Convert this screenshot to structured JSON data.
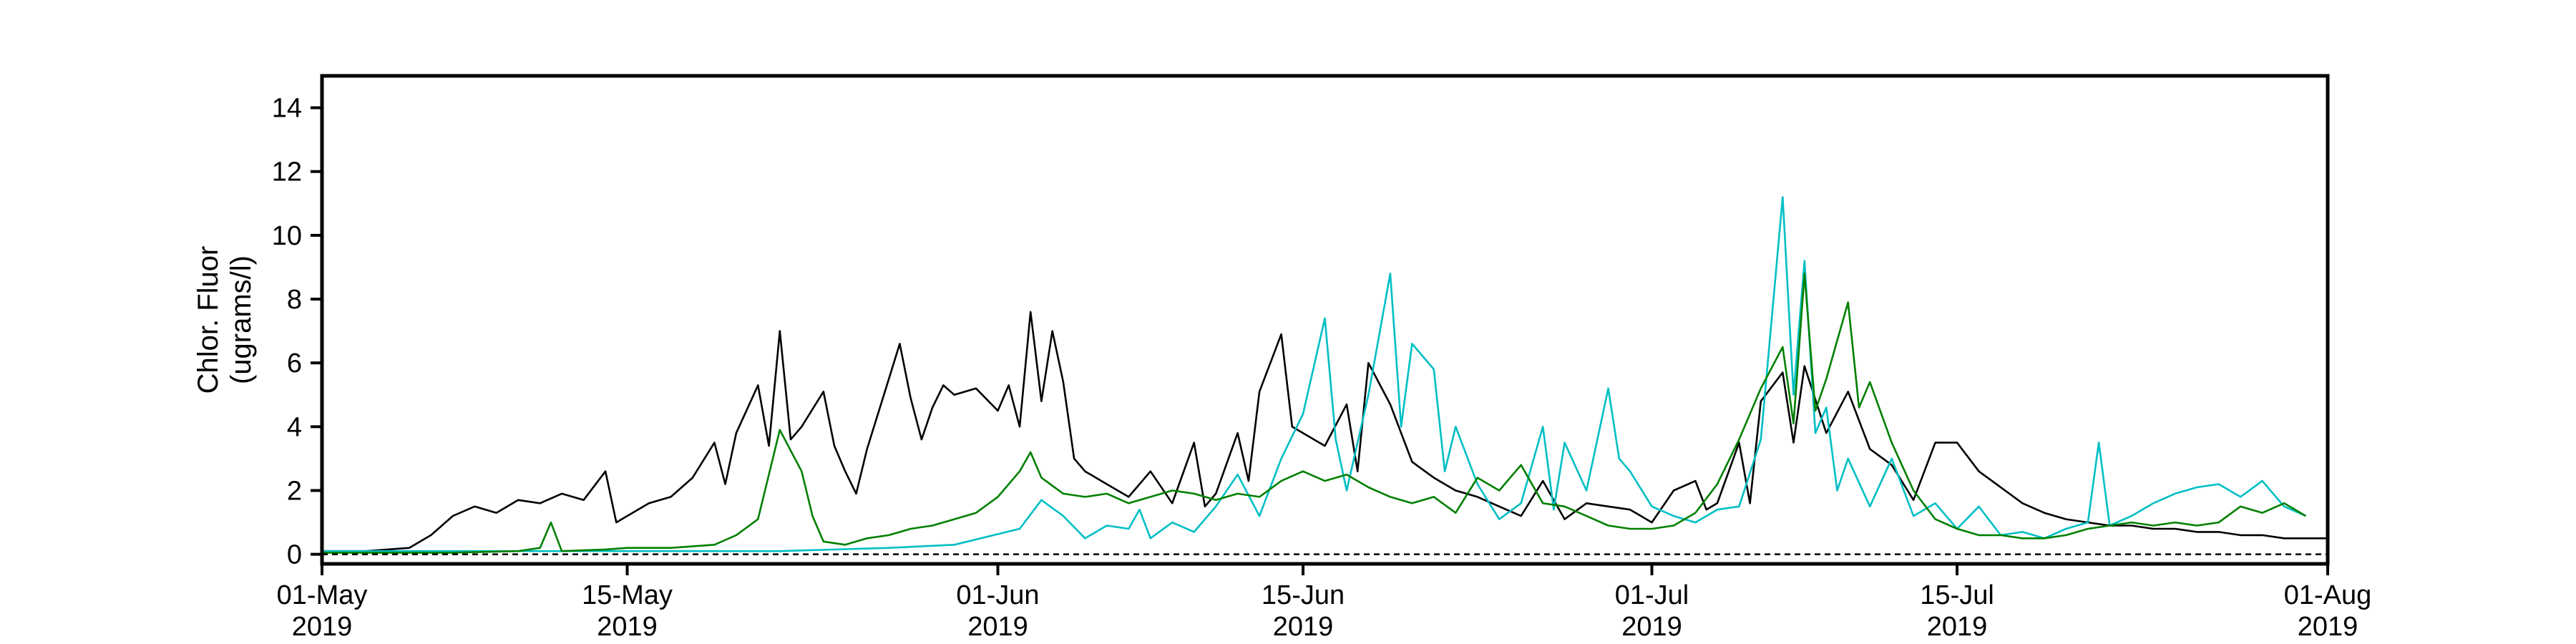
{
  "chart_data": {
    "type": "line",
    "title": "",
    "xlabel": "",
    "ylabel_lines": [
      "Chlor. Fluor",
      "(ugrams/l)"
    ],
    "x_range": [
      "2019-05-01",
      "2019-08-01"
    ],
    "ylim": [
      -0.3,
      15
    ],
    "y_ticks": [
      0,
      2,
      4,
      6,
      8,
      10,
      12,
      14
    ],
    "x_ticks": [
      {
        "date": "2019-05-01",
        "label": "01-May",
        "year": "2019"
      },
      {
        "date": "2019-05-15",
        "label": "15-May",
        "year": "2019"
      },
      {
        "date": "2019-06-01",
        "label": "01-Jun",
        "year": "2019"
      },
      {
        "date": "2019-06-15",
        "label": "15-Jun",
        "year": "2019"
      },
      {
        "date": "2019-07-01",
        "label": "01-Jul",
        "year": "2019"
      },
      {
        "date": "2019-07-15",
        "label": "15-Jul",
        "year": "2019"
      },
      {
        "date": "2019-08-01",
        "label": "01-Aug",
        "year": "2019"
      }
    ],
    "grid": false,
    "reference_line": {
      "y": 0,
      "style": "dashed",
      "color": "#000000"
    },
    "series": [
      {
        "color": "#000000",
        "points": [
          [
            "2019-05-01",
            0.1
          ],
          [
            "2019-05-03",
            0.1
          ],
          [
            "2019-05-05",
            0.2
          ],
          [
            "2019-05-06",
            0.6
          ],
          [
            "2019-05-07",
            1.2
          ],
          [
            "2019-05-08",
            1.5
          ],
          [
            "2019-05-09",
            1.3
          ],
          [
            "2019-05-10",
            1.7
          ],
          [
            "2019-05-11",
            1.6
          ],
          [
            "2019-05-12",
            1.9
          ],
          [
            "2019-05-13",
            1.7
          ],
          [
            "2019-05-14",
            2.6
          ],
          [
            "2019-05-14T12",
            1.0
          ],
          [
            "2019-05-15",
            1.2
          ],
          [
            "2019-05-16",
            1.6
          ],
          [
            "2019-05-17",
            1.8
          ],
          [
            "2019-05-18",
            2.4
          ],
          [
            "2019-05-19",
            3.5
          ],
          [
            "2019-05-19T12",
            2.2
          ],
          [
            "2019-05-20",
            3.8
          ],
          [
            "2019-05-21",
            5.3
          ],
          [
            "2019-05-21T12",
            3.4
          ],
          [
            "2019-05-22",
            7.0
          ],
          [
            "2019-05-22T12",
            3.6
          ],
          [
            "2019-05-23",
            4.0
          ],
          [
            "2019-05-24",
            5.1
          ],
          [
            "2019-05-24T12",
            3.4
          ],
          [
            "2019-05-25",
            2.6
          ],
          [
            "2019-05-25T12",
            1.9
          ],
          [
            "2019-05-26",
            3.3
          ],
          [
            "2019-05-27",
            5.5
          ],
          [
            "2019-05-27T12",
            6.6
          ],
          [
            "2019-05-28",
            4.9
          ],
          [
            "2019-05-28T12",
            3.6
          ],
          [
            "2019-05-29",
            4.6
          ],
          [
            "2019-05-29T12",
            5.3
          ],
          [
            "2019-05-30",
            5.0
          ],
          [
            "2019-05-31",
            5.2
          ],
          [
            "2019-06-01",
            4.5
          ],
          [
            "2019-06-01T12",
            5.3
          ],
          [
            "2019-06-02",
            4.0
          ],
          [
            "2019-06-02T12",
            7.6
          ],
          [
            "2019-06-03",
            4.8
          ],
          [
            "2019-06-03T12",
            7.0
          ],
          [
            "2019-06-04",
            5.4
          ],
          [
            "2019-06-04T12",
            3.0
          ],
          [
            "2019-06-05",
            2.6
          ],
          [
            "2019-06-06",
            2.2
          ],
          [
            "2019-06-07",
            1.8
          ],
          [
            "2019-06-08",
            2.6
          ],
          [
            "2019-06-09",
            1.6
          ],
          [
            "2019-06-10",
            3.5
          ],
          [
            "2019-06-10T12",
            1.5
          ],
          [
            "2019-06-11",
            1.9
          ],
          [
            "2019-06-12",
            3.8
          ],
          [
            "2019-06-12T12",
            2.3
          ],
          [
            "2019-06-13",
            5.1
          ],
          [
            "2019-06-14",
            6.9
          ],
          [
            "2019-06-14T12",
            4.0
          ],
          [
            "2019-06-15",
            3.8
          ],
          [
            "2019-06-16",
            3.4
          ],
          [
            "2019-06-17",
            4.7
          ],
          [
            "2019-06-17T12",
            2.6
          ],
          [
            "2019-06-18",
            6.0
          ],
          [
            "2019-06-19",
            4.7
          ],
          [
            "2019-06-20",
            2.9
          ],
          [
            "2019-06-21",
            2.4
          ],
          [
            "2019-06-22",
            2.0
          ],
          [
            "2019-06-23",
            1.8
          ],
          [
            "2019-06-24",
            1.5
          ],
          [
            "2019-06-25",
            1.2
          ],
          [
            "2019-06-26",
            2.3
          ],
          [
            "2019-06-27",
            1.1
          ],
          [
            "2019-06-28",
            1.6
          ],
          [
            "2019-06-29",
            1.5
          ],
          [
            "2019-06-30",
            1.4
          ],
          [
            "2019-07-01",
            1.0
          ],
          [
            "2019-07-02",
            2.0
          ],
          [
            "2019-07-03",
            2.3
          ],
          [
            "2019-07-03T12",
            1.4
          ],
          [
            "2019-07-04",
            1.6
          ],
          [
            "2019-07-05",
            3.5
          ],
          [
            "2019-07-05T12",
            1.6
          ],
          [
            "2019-07-06",
            4.8
          ],
          [
            "2019-07-07",
            5.7
          ],
          [
            "2019-07-07T12",
            3.5
          ],
          [
            "2019-07-08",
            5.9
          ],
          [
            "2019-07-09",
            3.8
          ],
          [
            "2019-07-10",
            5.1
          ],
          [
            "2019-07-11",
            3.3
          ],
          [
            "2019-07-12",
            2.8
          ],
          [
            "2019-07-13",
            1.7
          ],
          [
            "2019-07-14",
            3.5
          ],
          [
            "2019-07-15",
            3.5
          ],
          [
            "2019-07-16",
            2.6
          ],
          [
            "2019-07-17",
            2.1
          ],
          [
            "2019-07-18",
            1.6
          ],
          [
            "2019-07-19",
            1.3
          ],
          [
            "2019-07-20",
            1.1
          ],
          [
            "2019-07-21",
            1.0
          ],
          [
            "2019-07-22",
            0.9
          ],
          [
            "2019-07-23",
            0.9
          ],
          [
            "2019-07-24",
            0.8
          ],
          [
            "2019-07-25",
            0.8
          ],
          [
            "2019-07-26",
            0.7
          ],
          [
            "2019-07-27",
            0.7
          ],
          [
            "2019-07-28",
            0.6
          ],
          [
            "2019-07-29",
            0.6
          ],
          [
            "2019-07-30",
            0.5
          ],
          [
            "2019-07-31",
            0.5
          ],
          [
            "2019-08-01",
            0.5
          ]
        ]
      },
      {
        "color": "#00BFC4",
        "points": [
          [
            "2019-05-01",
            0.1
          ],
          [
            "2019-05-08",
            0.1
          ],
          [
            "2019-05-15",
            0.1
          ],
          [
            "2019-05-22",
            0.1
          ],
          [
            "2019-05-27",
            0.2
          ],
          [
            "2019-05-30",
            0.3
          ],
          [
            "2019-06-02",
            0.8
          ],
          [
            "2019-06-03",
            1.7
          ],
          [
            "2019-06-04",
            1.2
          ],
          [
            "2019-06-05",
            0.5
          ],
          [
            "2019-06-06",
            0.9
          ],
          [
            "2019-06-07",
            0.8
          ],
          [
            "2019-06-07T12",
            1.4
          ],
          [
            "2019-06-08",
            0.5
          ],
          [
            "2019-06-09",
            1.0
          ],
          [
            "2019-06-10",
            0.7
          ],
          [
            "2019-06-11",
            1.5
          ],
          [
            "2019-06-12",
            2.5
          ],
          [
            "2019-06-13",
            1.2
          ],
          [
            "2019-06-14",
            3.0
          ],
          [
            "2019-06-15",
            4.4
          ],
          [
            "2019-06-16",
            7.4
          ],
          [
            "2019-06-16T12",
            3.6
          ],
          [
            "2019-06-17",
            2.0
          ],
          [
            "2019-06-18",
            5.0
          ],
          [
            "2019-06-19",
            8.8
          ],
          [
            "2019-06-19T12",
            4.0
          ],
          [
            "2019-06-20",
            6.6
          ],
          [
            "2019-06-21",
            5.8
          ],
          [
            "2019-06-21T12",
            2.6
          ],
          [
            "2019-06-22",
            4.0
          ],
          [
            "2019-06-23",
            2.2
          ],
          [
            "2019-06-24",
            1.1
          ],
          [
            "2019-06-25",
            1.6
          ],
          [
            "2019-06-26",
            4.0
          ],
          [
            "2019-06-26T12",
            1.4
          ],
          [
            "2019-06-27",
            3.5
          ],
          [
            "2019-06-28",
            2.0
          ],
          [
            "2019-06-29",
            5.2
          ],
          [
            "2019-06-29T12",
            3.0
          ],
          [
            "2019-06-30",
            2.6
          ],
          [
            "2019-07-01",
            1.5
          ],
          [
            "2019-07-02",
            1.2
          ],
          [
            "2019-07-03",
            1.0
          ],
          [
            "2019-07-04",
            1.4
          ],
          [
            "2019-07-05",
            1.5
          ],
          [
            "2019-07-06",
            3.6
          ],
          [
            "2019-07-07",
            11.2
          ],
          [
            "2019-07-07T12",
            5.0
          ],
          [
            "2019-07-08",
            9.2
          ],
          [
            "2019-07-08T12",
            3.8
          ],
          [
            "2019-07-09",
            4.6
          ],
          [
            "2019-07-09T12",
            2.0
          ],
          [
            "2019-07-10",
            3.0
          ],
          [
            "2019-07-11",
            1.5
          ],
          [
            "2019-07-12",
            3.0
          ],
          [
            "2019-07-13",
            1.2
          ],
          [
            "2019-07-14",
            1.6
          ],
          [
            "2019-07-15",
            0.8
          ],
          [
            "2019-07-16",
            1.5
          ],
          [
            "2019-07-17",
            0.6
          ],
          [
            "2019-07-18",
            0.7
          ],
          [
            "2019-07-19",
            0.5
          ],
          [
            "2019-07-20",
            0.8
          ],
          [
            "2019-07-21",
            1.0
          ],
          [
            "2019-07-21T12",
            3.5
          ],
          [
            "2019-07-22",
            0.9
          ],
          [
            "2019-07-23",
            1.2
          ],
          [
            "2019-07-24",
            1.6
          ],
          [
            "2019-07-25",
            1.9
          ],
          [
            "2019-07-26",
            2.1
          ],
          [
            "2019-07-27",
            2.2
          ],
          [
            "2019-07-28",
            1.8
          ],
          [
            "2019-07-29",
            2.3
          ],
          [
            "2019-07-30",
            1.5
          ],
          [
            "2019-07-31",
            1.2
          ]
        ]
      },
      {
        "color": "#008000",
        "points": [
          [
            "2019-05-01",
            0.05
          ],
          [
            "2019-05-07",
            0.05
          ],
          [
            "2019-05-10",
            0.1
          ],
          [
            "2019-05-11",
            0.2
          ],
          [
            "2019-05-11T12",
            1.0
          ],
          [
            "2019-05-12",
            0.1
          ],
          [
            "2019-05-14",
            0.15
          ],
          [
            "2019-05-15",
            0.2
          ],
          [
            "2019-05-17",
            0.2
          ],
          [
            "2019-05-19",
            0.3
          ],
          [
            "2019-05-20",
            0.6
          ],
          [
            "2019-05-21",
            1.1
          ],
          [
            "2019-05-22",
            3.9
          ],
          [
            "2019-05-23",
            2.6
          ],
          [
            "2019-05-23T12",
            1.2
          ],
          [
            "2019-05-24",
            0.4
          ],
          [
            "2019-05-25",
            0.3
          ],
          [
            "2019-05-26",
            0.5
          ],
          [
            "2019-05-27",
            0.6
          ],
          [
            "2019-05-28",
            0.8
          ],
          [
            "2019-05-29",
            0.9
          ],
          [
            "2019-05-30",
            1.1
          ],
          [
            "2019-05-31",
            1.3
          ],
          [
            "2019-06-01",
            1.8
          ],
          [
            "2019-06-02",
            2.6
          ],
          [
            "2019-06-02T12",
            3.2
          ],
          [
            "2019-06-03",
            2.4
          ],
          [
            "2019-06-04",
            1.9
          ],
          [
            "2019-06-05",
            1.8
          ],
          [
            "2019-06-06",
            1.9
          ],
          [
            "2019-06-07",
            1.6
          ],
          [
            "2019-06-08",
            1.8
          ],
          [
            "2019-06-09",
            2.0
          ],
          [
            "2019-06-10",
            1.9
          ],
          [
            "2019-06-11",
            1.7
          ],
          [
            "2019-06-12",
            1.9
          ],
          [
            "2019-06-13",
            1.8
          ],
          [
            "2019-06-14",
            2.3
          ],
          [
            "2019-06-15",
            2.6
          ],
          [
            "2019-06-16",
            2.3
          ],
          [
            "2019-06-17",
            2.5
          ],
          [
            "2019-06-18",
            2.1
          ],
          [
            "2019-06-19",
            1.8
          ],
          [
            "2019-06-20",
            1.6
          ],
          [
            "2019-06-21",
            1.8
          ],
          [
            "2019-06-22",
            1.3
          ],
          [
            "2019-06-23",
            2.4
          ],
          [
            "2019-06-24",
            2.0
          ],
          [
            "2019-06-25",
            2.8
          ],
          [
            "2019-06-26",
            1.6
          ],
          [
            "2019-06-27",
            1.5
          ],
          [
            "2019-06-28",
            1.2
          ],
          [
            "2019-06-29",
            0.9
          ],
          [
            "2019-06-30",
            0.8
          ],
          [
            "2019-07-01",
            0.8
          ],
          [
            "2019-07-02",
            0.9
          ],
          [
            "2019-07-03",
            1.3
          ],
          [
            "2019-07-04",
            2.2
          ],
          [
            "2019-07-05",
            3.6
          ],
          [
            "2019-07-06",
            5.2
          ],
          [
            "2019-07-07",
            6.5
          ],
          [
            "2019-07-07T12",
            4.1
          ],
          [
            "2019-07-08",
            8.8
          ],
          [
            "2019-07-08T12",
            4.5
          ],
          [
            "2019-07-09",
            5.5
          ],
          [
            "2019-07-10",
            7.9
          ],
          [
            "2019-07-10T12",
            4.6
          ],
          [
            "2019-07-11",
            5.4
          ],
          [
            "2019-07-12",
            3.5
          ],
          [
            "2019-07-13",
            2.0
          ],
          [
            "2019-07-14",
            1.1
          ],
          [
            "2019-07-15",
            0.8
          ],
          [
            "2019-07-16",
            0.6
          ],
          [
            "2019-07-17",
            0.6
          ],
          [
            "2019-07-18",
            0.5
          ],
          [
            "2019-07-19",
            0.5
          ],
          [
            "2019-07-20",
            0.6
          ],
          [
            "2019-07-21",
            0.8
          ],
          [
            "2019-07-22",
            0.9
          ],
          [
            "2019-07-23",
            1.0
          ],
          [
            "2019-07-24",
            0.9
          ],
          [
            "2019-07-25",
            1.0
          ],
          [
            "2019-07-26",
            0.9
          ],
          [
            "2019-07-27",
            1.0
          ],
          [
            "2019-07-28",
            1.5
          ],
          [
            "2019-07-29",
            1.3
          ],
          [
            "2019-07-30",
            1.6
          ],
          [
            "2019-07-31",
            1.2
          ]
        ]
      }
    ]
  }
}
